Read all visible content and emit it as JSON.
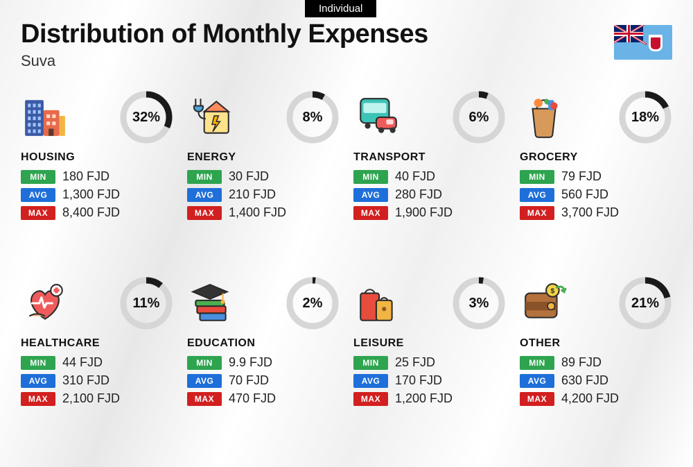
{
  "tab_label": "Individual",
  "title": "Distribution of Monthly Expenses",
  "subtitle": "Suva",
  "currency": "FJD",
  "colors": {
    "min_badge": "#2ea44f",
    "avg_badge": "#1e6fd9",
    "max_badge": "#d21f1f",
    "donut_fg": "#1a1a1a",
    "donut_bg": "#d6d6d6",
    "flag_bg": "#69b3e7"
  },
  "labels": {
    "min": "MIN",
    "avg": "AVG",
    "max": "MAX"
  },
  "donut": {
    "radius": 33,
    "stroke_width": 9
  },
  "categories": [
    {
      "key": "housing",
      "name": "HOUSING",
      "pct": 32,
      "min": "180",
      "avg": "1,300",
      "max": "8,400",
      "icon": "buildings"
    },
    {
      "key": "energy",
      "name": "ENERGY",
      "pct": 8,
      "min": "30",
      "avg": "210",
      "max": "1,400",
      "icon": "energy"
    },
    {
      "key": "transport",
      "name": "TRANSPORT",
      "pct": 6,
      "min": "40",
      "avg": "280",
      "max": "1,900",
      "icon": "transport"
    },
    {
      "key": "grocery",
      "name": "GROCERY",
      "pct": 18,
      "min": "79",
      "avg": "560",
      "max": "3,700",
      "icon": "grocery"
    },
    {
      "key": "healthcare",
      "name": "HEALTHCARE",
      "pct": 11,
      "min": "44",
      "avg": "310",
      "max": "2,100",
      "icon": "healthcare"
    },
    {
      "key": "education",
      "name": "EDUCATION",
      "pct": 2,
      "min": "9.9",
      "avg": "70",
      "max": "470",
      "icon": "education"
    },
    {
      "key": "leisure",
      "name": "LEISURE",
      "pct": 3,
      "min": "25",
      "avg": "170",
      "max": "1,200",
      "icon": "leisure"
    },
    {
      "key": "other",
      "name": "OTHER",
      "pct": 21,
      "min": "89",
      "avg": "630",
      "max": "4,200",
      "icon": "other"
    }
  ]
}
